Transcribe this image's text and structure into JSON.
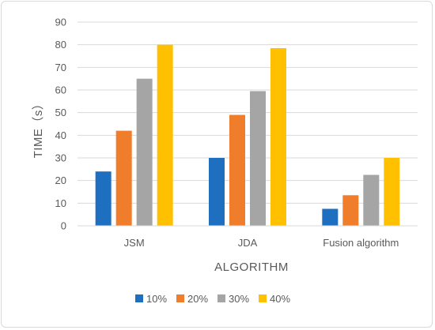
{
  "chart_data": {
    "type": "bar",
    "title": "",
    "xlabel": "ALGORITHM",
    "ylabel": "TIME（s）",
    "categories": [
      "JSM",
      "JDA",
      "Fusion algorithm"
    ],
    "ylim": [
      0,
      90
    ],
    "yticks": [
      0,
      10,
      20,
      30,
      40,
      50,
      60,
      70,
      80,
      90
    ],
    "grid": true,
    "legend_position": "bottom",
    "series": [
      {
        "name": "10%",
        "color": "#1f6fc0",
        "values": [
          24,
          30,
          7.5
        ]
      },
      {
        "name": "20%",
        "color": "#f07d2c",
        "values": [
          42,
          49,
          13.5
        ]
      },
      {
        "name": "30%",
        "color": "#a5a5a5",
        "values": [
          65,
          59.5,
          22.5
        ]
      },
      {
        "name": "40%",
        "color": "#ffc000",
        "values": [
          80,
          78.5,
          30
        ]
      }
    ]
  }
}
